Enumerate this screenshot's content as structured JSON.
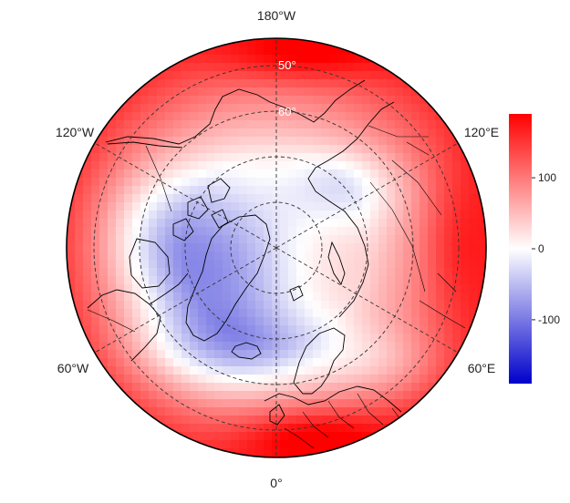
{
  "map": {
    "projection": "north-polar-stereographic",
    "center": "north-pole",
    "longitude_labels": {
      "top": "180°W",
      "upper_left": "120°W",
      "upper_right": "120°E",
      "lower_left": "60°W",
      "lower_right": "60°E",
      "bottom": "0°"
    },
    "latitude_labels": [
      "50°",
      "60°"
    ],
    "field": {
      "description_values": "gridded anomaly field, negative over Greenland/Arctic/N Atlantic, positive at lower latitudes",
      "colormap": [
        "#0000cc",
        "#ffffff",
        "#ff0000"
      ]
    }
  },
  "colorbar": {
    "position": "right",
    "range": [
      -190,
      190
    ],
    "ticks": [
      {
        "value": 100,
        "label": "100"
      },
      {
        "value": 0,
        "label": "0"
      },
      {
        "value": -100,
        "label": "-100"
      }
    ],
    "colors": {
      "low": "#0000cc",
      "mid": "#ffffff",
      "high": "#ff0000"
    }
  }
}
